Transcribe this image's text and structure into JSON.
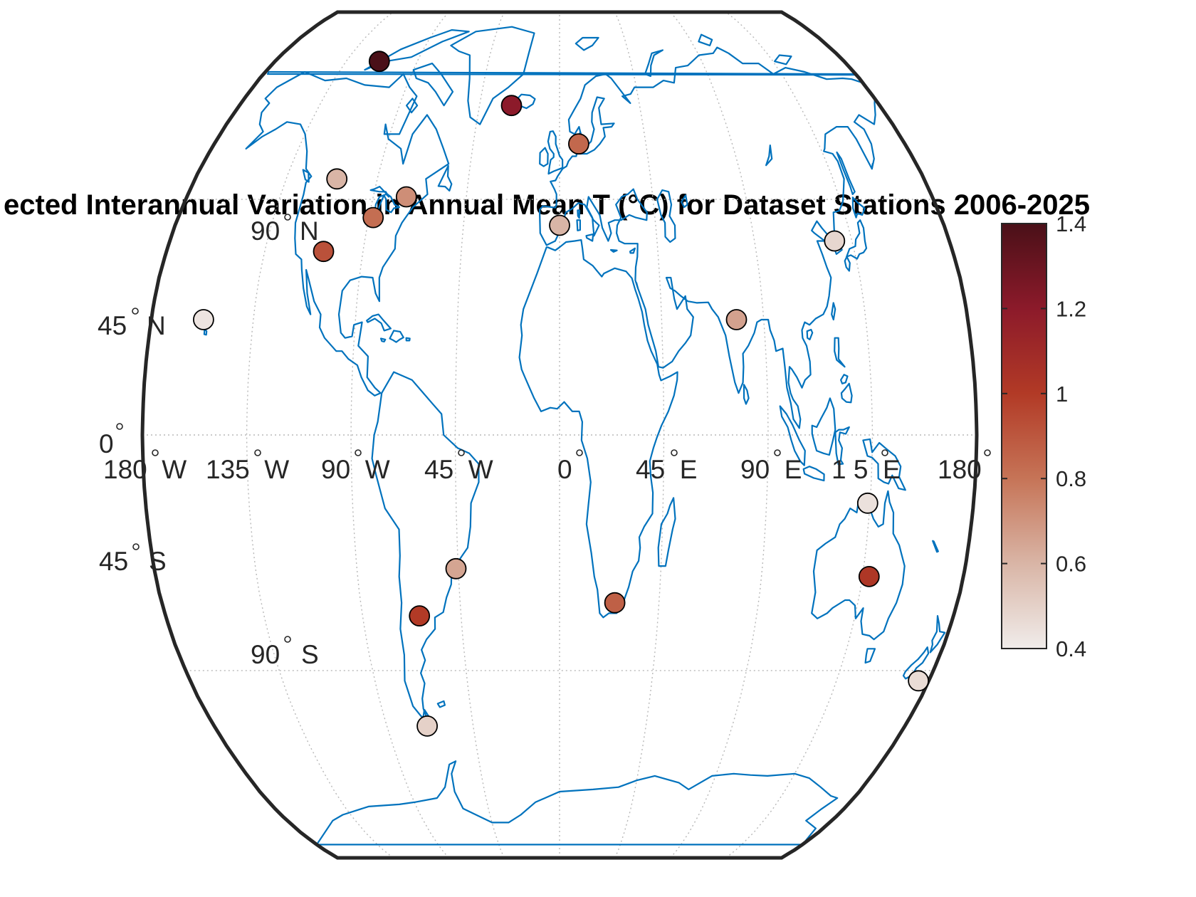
{
  "chart_data": {
    "type": "scatter",
    "projection": "Robinson",
    "title": "ected Interannual Variation in Annual Mean T (°C) for Dataset Stations 2006-2025",
    "parallel_labels": [
      "90° N",
      "45° N",
      "0°",
      "45° S",
      "90° S"
    ],
    "meridian_labels": [
      "180° W",
      "135° W",
      "90° W",
      "45° W",
      "0°",
      "45° E",
      "90° E",
      "135° E",
      "180°"
    ],
    "meridian_label_display": [
      "180  W",
      "135  W",
      "90  W",
      "45  W",
      "0",
      "45  E",
      "90  E",
      "1 5  E",
      "180"
    ],
    "colorbar": {
      "ticks": [
        "0.4",
        "0.6",
        "0.8",
        "1",
        "1.2",
        "1.4"
      ],
      "range": [
        0.4,
        1.4
      ],
      "colors": [
        "#f0ecea",
        "#d9b5a6",
        "#c67457",
        "#b23a26",
        "#8c1a2a",
        "#4a1018"
      ]
    },
    "stations": [
      {
        "lon": -114,
        "lat": 74,
        "value": 1.4
      },
      {
        "lon": -27,
        "lat": 64,
        "value": 1.2
      },
      {
        "lon": 10,
        "lat": 56,
        "value": 0.84
      },
      {
        "lon": -110,
        "lat": 49,
        "value": 0.6
      },
      {
        "lon": -74,
        "lat": 45.5,
        "value": 0.72
      },
      {
        "lon": -88,
        "lat": 41.5,
        "value": 0.82
      },
      {
        "lon": -108,
        "lat": 35,
        "value": 0.92
      },
      {
        "lon": -157,
        "lat": 22,
        "value": 0.43
      },
      {
        "lon": 0,
        "lat": 40,
        "value": 0.6
      },
      {
        "lon": 127,
        "lat": 37,
        "value": 0.48
      },
      {
        "lon": 78,
        "lat": 22,
        "value": 0.66
      },
      {
        "lon": 134,
        "lat": -13,
        "value": 0.44
      },
      {
        "lon": 138,
        "lat": -27,
        "value": 1.02
      },
      {
        "lon": 175,
        "lat": -47,
        "value": 0.46
      },
      {
        "lon": 25,
        "lat": -32,
        "value": 0.87
      },
      {
        "lon": -46,
        "lat": -25.5,
        "value": 0.65
      },
      {
        "lon": -64,
        "lat": -34.5,
        "value": 1.0
      },
      {
        "lon": -69,
        "lat": -56,
        "value": 0.5
      }
    ]
  }
}
